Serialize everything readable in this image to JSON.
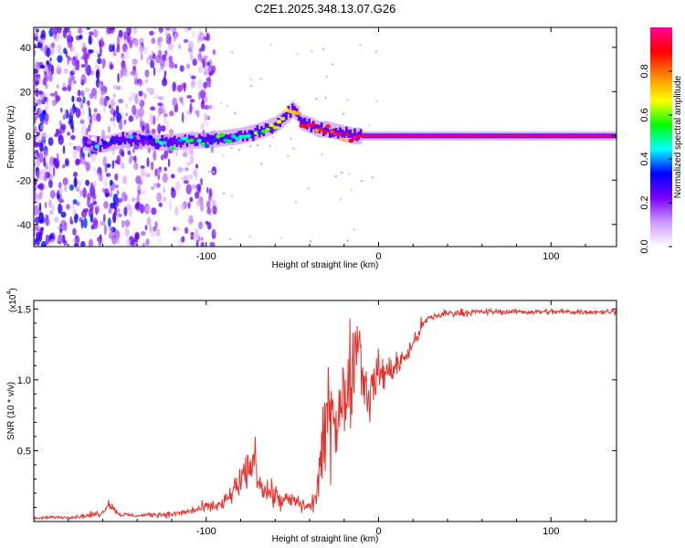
{
  "title": "C2E1.2025.348.13.07.G26",
  "chart_data": [
    {
      "type": "heatmap",
      "name": "spectrogram",
      "xlabel": "Height of straight line (km)",
      "ylabel": "Frequency (Hz)",
      "xlim": [
        -200,
        138
      ],
      "ylim": [
        -50,
        49
      ],
      "xticks": [
        -100,
        0,
        100
      ],
      "xtick_labels": [
        "-100",
        "0",
        "100"
      ],
      "yticks": [
        -40,
        -20,
        0,
        20,
        40
      ],
      "ytick_labels": [
        "-40",
        "-20",
        "0",
        "20",
        "40"
      ],
      "colorbar": {
        "label": "Normalized spectral amplitude",
        "range": [
          0,
          1
        ],
        "ticks": [
          0,
          0.2,
          0.4,
          0.6,
          0.8
        ],
        "tick_labels": [
          "0.0",
          "0.2",
          "0.4",
          "0.6",
          "0.8"
        ],
        "colors": [
          "#ffffff",
          "#cc99ff",
          "#7a00ff",
          "#0000ff",
          "#00ffff",
          "#00ff00",
          "#ffff00",
          "#ff8800",
          "#ff0000",
          "#ff0099"
        ]
      },
      "ridge_x": [
        -170,
        -160,
        -150,
        -140,
        -130,
        -120,
        -110,
        -100,
        -90,
        -80,
        -70,
        -60,
        -55,
        -50,
        -47,
        -45,
        -40,
        -35,
        -30,
        -25,
        -20,
        -15,
        -10,
        0,
        20,
        40,
        60,
        80,
        100,
        120,
        138
      ],
      "ridge_freq": [
        -3,
        -4,
        -2,
        -1,
        -3,
        -3,
        -2,
        -2,
        -1,
        0,
        2,
        5,
        8,
        12,
        10,
        6,
        5,
        3,
        3,
        2,
        1,
        0,
        0,
        0,
        0,
        0,
        0,
        0,
        0,
        0,
        0
      ],
      "ridge_amp": [
        0.15,
        0.25,
        0.2,
        0.25,
        0.35,
        0.4,
        0.45,
        0.45,
        0.45,
        0.45,
        0.5,
        0.5,
        0.55,
        0.7,
        0.75,
        0.8,
        0.85,
        0.85,
        0.88,
        0.9,
        0.9,
        0.92,
        0.95,
        0.95,
        0.95,
        0.95,
        0.95,
        0.95,
        0.95,
        0.95,
        0.95
      ]
    },
    {
      "type": "line",
      "name": "snr",
      "xlabel": "Height of straight line (km)",
      "ylabel": "SNR (10 * v/v)",
      "multiplier_label": "(x10",
      "multiplier_exp": "4",
      "multiplier_close": ")",
      "xlim": [
        -200,
        138
      ],
      "ylim": [
        0,
        1.56
      ],
      "xticks": [
        -100,
        0,
        100
      ],
      "xtick_labels": [
        "-100",
        "0",
        "100"
      ],
      "yticks": [
        0.5,
        1.0,
        1.5
      ],
      "ytick_labels": [
        "0.5",
        "1.0",
        "1.5"
      ],
      "color": "#e8302a",
      "x": [
        -200,
        -190,
        -180,
        -170,
        -160,
        -157,
        -150,
        -140,
        -130,
        -120,
        -110,
        -100,
        -90,
        -85,
        -80,
        -75,
        -72,
        -70,
        -65,
        -60,
        -55,
        -50,
        -45,
        -40,
        -37,
        -35,
        -32,
        -30,
        -28,
        -25,
        -22,
        -20,
        -18,
        -15,
        -12,
        -10,
        -8,
        -5,
        -2,
        0,
        5,
        10,
        15,
        20,
        25,
        30,
        40,
        60,
        80,
        100,
        120,
        138
      ],
      "y": [
        0.02,
        0.03,
        0.03,
        0.04,
        0.06,
        0.13,
        0.05,
        0.04,
        0.05,
        0.05,
        0.07,
        0.1,
        0.12,
        0.2,
        0.28,
        0.35,
        0.48,
        0.3,
        0.22,
        0.18,
        0.14,
        0.15,
        0.12,
        0.1,
        0.15,
        0.3,
        0.5,
        0.7,
        0.9,
        0.8,
        0.75,
        0.85,
        1.0,
        1.1,
        1.35,
        1.15,
        0.95,
        0.9,
        1.0,
        1.05,
        1.05,
        1.1,
        1.15,
        1.25,
        1.38,
        1.44,
        1.47,
        1.48,
        1.48,
        1.48,
        1.48,
        1.48
      ],
      "amplitude": [
        0.01,
        0.01,
        0.01,
        0.02,
        0.02,
        0.03,
        0.02,
        0.01,
        0.02,
        0.02,
        0.03,
        0.04,
        0.06,
        0.08,
        0.12,
        0.15,
        0.12,
        0.12,
        0.1,
        0.1,
        0.08,
        0.07,
        0.06,
        0.05,
        0.08,
        0.2,
        0.3,
        0.35,
        0.4,
        0.45,
        0.45,
        0.45,
        0.4,
        0.35,
        0.3,
        0.25,
        0.2,
        0.2,
        0.18,
        0.15,
        0.12,
        0.1,
        0.08,
        0.07,
        0.05,
        0.04,
        0.03,
        0.02,
        0.02,
        0.02,
        0.02,
        0.02
      ]
    }
  ]
}
